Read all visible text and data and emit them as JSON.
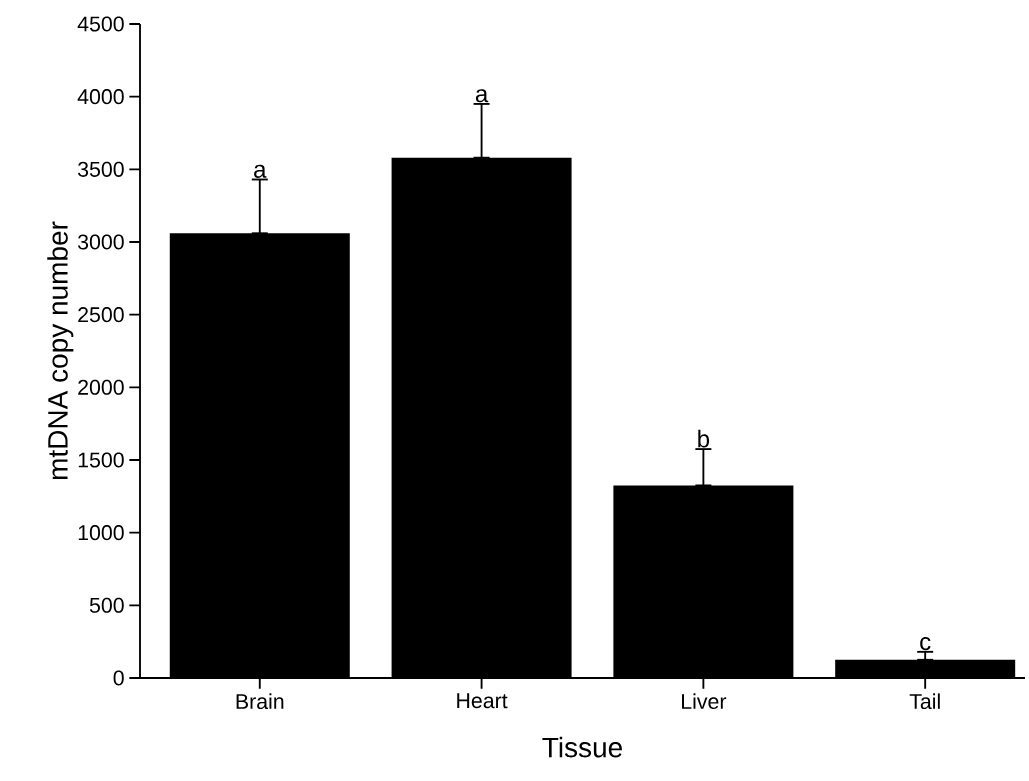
{
  "chart_data": {
    "type": "bar",
    "xlabel": "Tissue",
    "ylabel": "mtDNA copy number",
    "categories": [
      "Brain",
      "Heart",
      "Liver",
      "Tail"
    ],
    "values": [
      3060,
      3580,
      1325,
      125
    ],
    "errors": [
      [
        3060,
        3430
      ],
      [
        3580,
        3950
      ],
      [
        1325,
        1575
      ],
      [
        125,
        180
      ]
    ],
    "color": "#000000",
    "ylim": [
      0,
      4500
    ],
    "yticks": [
      0,
      500,
      1000,
      1500,
      2000,
      2500,
      3000,
      3500,
      4000,
      4500
    ],
    "annotations": [
      "a",
      "a",
      "b",
      "c"
    ]
  }
}
